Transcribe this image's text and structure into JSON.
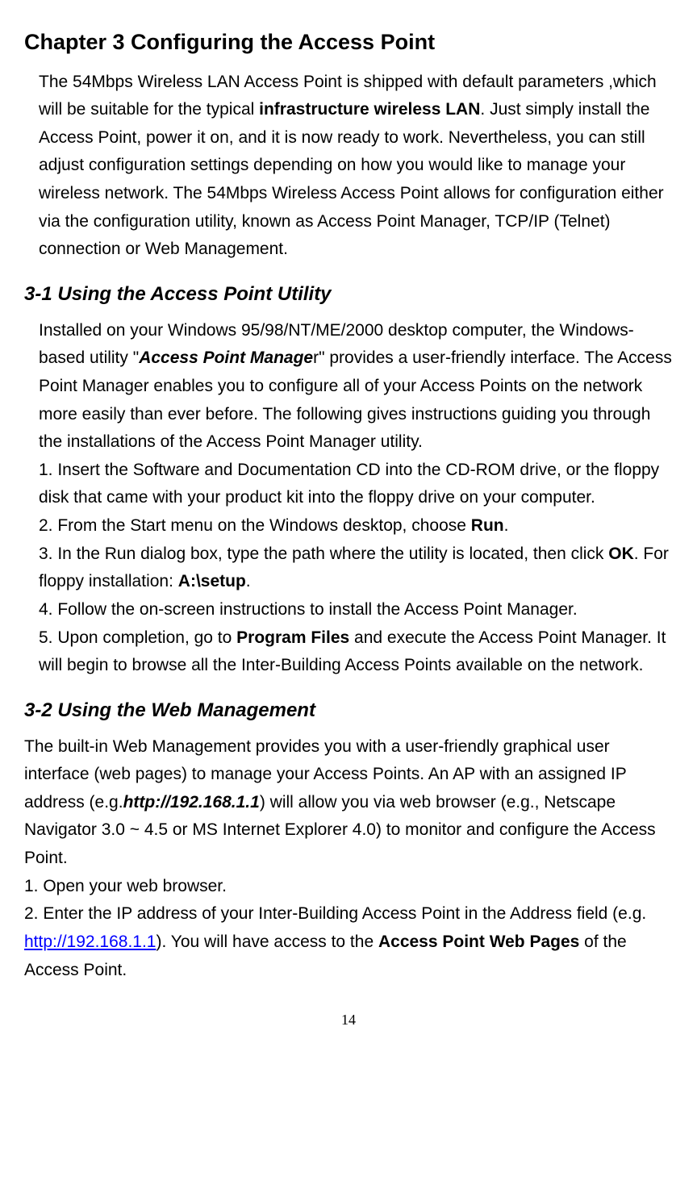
{
  "chapter_title": "Chapter 3 Configuring the Access Point",
  "intro_pre": "The 54Mbps Wireless LAN Access Point is shipped with default parameters ,which will be suitable for the typical ",
  "intro_bold1": "infrastructure wireless LAN",
  "intro_post": ". Just simply install the Access Point, power it on, and it is now ready to work. Nevertheless, you can still adjust configuration settings depending on how you would like to manage your wireless network. The 54Mbps Wireless Access Point allows for configuration either via the configuration utility, known as Access Point Manager, TCP/IP (Telnet) connection or Web Management.",
  "s31_heading": "3-1 Using the Access Point Utility",
  "s31_p_pre": "Installed on your Windows 95/98/NT/ME/2000 desktop computer, the Windows-based utility   \"",
  "s31_p_bi": "Access Point Manage",
  "s31_p_post": "r\" provides a user-friendly interface. The Access Point Manager enables you to configure all of your Access Points on the network more easily than ever before. The following gives instructions guiding you through the installations of the Access Point Manager utility.",
  "s31_step1": "1. Insert the Software and Documentation CD into the CD-ROM drive, or the floppy disk that came with your product kit into the floppy drive on your computer.",
  "s31_step2_pre": "2. From the Start menu on the Windows desktop, choose ",
  "s31_step2_b": "Run",
  "s31_step2_post": ".",
  "s31_step3_pre": "3. In the Run dialog box, type the path where the utility is located, then click ",
  "s31_step3_b1": "OK",
  "s31_step3_mid": ". For floppy installation: ",
  "s31_step3_b2": "A:\\setup",
  "s31_step3_post": ".",
  "s31_step4": "4. Follow the on-screen instructions to install the Access Point Manager.",
  "s31_step5_pre": "5. Upon completion, go to ",
  "s31_step5_b": "Program Files",
  "s31_step5_post": " and execute the Access Point Manager. It will begin to browse all the Inter-Building Access Points available on the network.",
  "s32_heading": "3-2 Using the Web Management",
  "s32_p_pre": "The built-in Web Management provides you with a user-friendly graphical user interface (web pages) to manage your Access Points. An AP with an assigned IP address (e.g.",
  "s32_p_bi": "http://192.168.1.1",
  "s32_p_post": ") will allow you via web browser (e.g., Netscape Navigator 3.0 ~ 4.5 or MS Internet Explorer 4.0) to monitor and configure the Access Point.",
  "s32_step1": "1. Open your web browser.",
  "s32_step2_pre": "2. Enter the IP address of your Inter-Building Access Point in the Address field (e.g. ",
  "s32_step2_link": "http://192.168.1.1",
  "s32_step2_mid": "). You will have access to the ",
  "s32_step2_b": "Access Point Web Pages",
  "s32_step2_post": " of the Access Point.",
  "page_number": "14"
}
